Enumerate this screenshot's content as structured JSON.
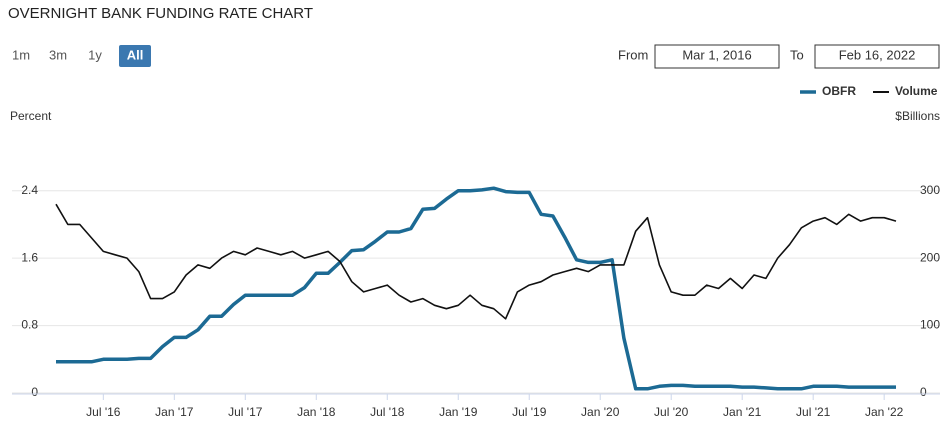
{
  "chart_data": {
    "type": "line",
    "title": "OVERNIGHT BANK FUNDING RATE CHART",
    "ylabel": "Percent",
    "y2label": "$Billions",
    "x": [
      "2016-03",
      "2016-04",
      "2016-05",
      "2016-06",
      "2016-07",
      "2016-08",
      "2016-09",
      "2016-10",
      "2016-11",
      "2016-12",
      "2017-01",
      "2017-02",
      "2017-03",
      "2017-04",
      "2017-05",
      "2017-06",
      "2017-07",
      "2017-08",
      "2017-09",
      "2017-10",
      "2017-11",
      "2017-12",
      "2018-01",
      "2018-02",
      "2018-03",
      "2018-04",
      "2018-05",
      "2018-06",
      "2018-07",
      "2018-08",
      "2018-09",
      "2018-10",
      "2018-11",
      "2018-12",
      "2019-01",
      "2019-02",
      "2019-03",
      "2019-04",
      "2019-05",
      "2019-06",
      "2019-07",
      "2019-08",
      "2019-09",
      "2019-10",
      "2019-11",
      "2019-12",
      "2020-01",
      "2020-02",
      "2020-03",
      "2020-04",
      "2020-05",
      "2020-06",
      "2020-07",
      "2020-08",
      "2020-09",
      "2020-10",
      "2020-11",
      "2020-12",
      "2021-01",
      "2021-02",
      "2021-03",
      "2021-04",
      "2021-05",
      "2021-06",
      "2021-07",
      "2021-08",
      "2021-09",
      "2021-10",
      "2021-11",
      "2021-12",
      "2022-01",
      "2022-02"
    ],
    "series": [
      {
        "name": "OBFR",
        "color": "#1c6a94",
        "axis": "y",
        "values": [
          0.37,
          0.37,
          0.37,
          0.37,
          0.4,
          0.4,
          0.4,
          0.41,
          0.41,
          0.55,
          0.66,
          0.66,
          0.75,
          0.91,
          0.91,
          1.05,
          1.16,
          1.16,
          1.16,
          1.16,
          1.16,
          1.25,
          1.42,
          1.42,
          1.55,
          1.69,
          1.7,
          1.8,
          1.91,
          1.91,
          1.95,
          2.18,
          2.19,
          2.3,
          2.4,
          2.4,
          2.41,
          2.43,
          2.39,
          2.38,
          2.38,
          2.12,
          2.1,
          1.85,
          1.58,
          1.55,
          1.55,
          1.58,
          0.65,
          0.05,
          0.05,
          0.08,
          0.09,
          0.09,
          0.08,
          0.08,
          0.08,
          0.08,
          0.07,
          0.07,
          0.06,
          0.05,
          0.05,
          0.05,
          0.08,
          0.08,
          0.08,
          0.07,
          0.07,
          0.07,
          0.07,
          0.07
        ]
      },
      {
        "name": "Volume",
        "color": "#111111",
        "axis": "y2",
        "values": [
          280,
          250,
          250,
          230,
          210,
          205,
          200,
          180,
          140,
          140,
          150,
          175,
          190,
          185,
          200,
          210,
          205,
          215,
          210,
          205,
          210,
          200,
          205,
          210,
          195,
          165,
          150,
          155,
          160,
          145,
          135,
          140,
          130,
          125,
          130,
          145,
          130,
          125,
          110,
          150,
          160,
          165,
          175,
          180,
          185,
          180,
          190,
          190,
          190,
          240,
          260,
          190,
          150,
          145,
          145,
          160,
          155,
          170,
          155,
          175,
          170,
          200,
          220,
          245,
          255,
          260,
          250,
          265,
          255,
          260,
          260,
          255
        ]
      }
    ],
    "xlim": [
      "2016-03",
      "2022-02"
    ],
    "xticks": [
      {
        "value": "2016-07",
        "label": "Jul '16"
      },
      {
        "value": "2017-01",
        "label": "Jan '17"
      },
      {
        "value": "2017-07",
        "label": "Jul '17"
      },
      {
        "value": "2018-01",
        "label": "Jan '18"
      },
      {
        "value": "2018-07",
        "label": "Jul '18"
      },
      {
        "value": "2019-01",
        "label": "Jan '19"
      },
      {
        "value": "2019-07",
        "label": "Jul '19"
      },
      {
        "value": "2020-01",
        "label": "Jan '20"
      },
      {
        "value": "2020-07",
        "label": "Jul '20"
      },
      {
        "value": "2021-01",
        "label": "Jan '21"
      },
      {
        "value": "2021-07",
        "label": "Jul '21"
      },
      {
        "value": "2022-01",
        "label": "Jan '22"
      }
    ],
    "ylim": [
      0,
      2.8
    ],
    "yticks": [
      0,
      0.8,
      1.6,
      2.4
    ],
    "y2lim": [
      0,
      350
    ],
    "y2ticks": [
      0,
      100,
      200,
      300
    ],
    "grid": true,
    "legend": "top-right"
  },
  "ui": {
    "range_buttons": [
      "1m",
      "3m",
      "1y",
      "All"
    ],
    "selected": 3,
    "from_label": "From",
    "from_value": "Mar 1, 2016",
    "to_label": "To",
    "to_value": "Feb 16, 2022"
  }
}
